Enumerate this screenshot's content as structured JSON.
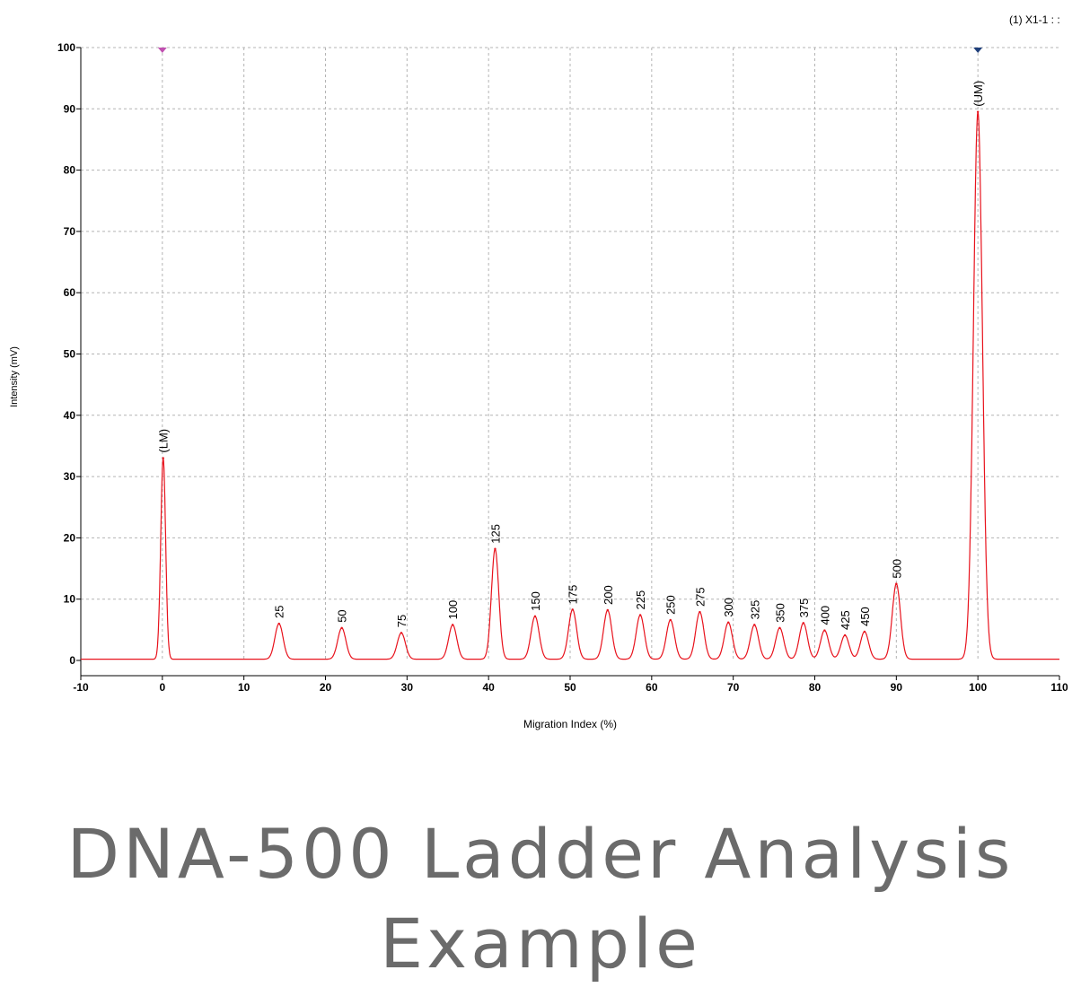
{
  "legend": "(1) X1-1 : :",
  "caption": {
    "line1": "DNA-500 Ladder Analysis",
    "line2": "Example"
  },
  "colors": {
    "trace": "#e8121c",
    "grid": "#b4b4b4",
    "lower_marker": "#c050b0",
    "upper_marker": "#1f3f7a",
    "caption": "#6b6b6b"
  },
  "chart_data": {
    "type": "line",
    "xlabel": "Migration Index (%)",
    "ylabel": "Intensity (mV)",
    "xlim": [
      -10,
      110
    ],
    "ylim": [
      0,
      100
    ],
    "xticks": [
      -10,
      0,
      10,
      20,
      30,
      40,
      50,
      60,
      70,
      80,
      90,
      100,
      110
    ],
    "yticks": [
      0,
      10,
      20,
      30,
      40,
      50,
      60,
      70,
      80,
      90,
      100
    ],
    "grid": true,
    "legend_position": "top-right",
    "markers": [
      {
        "x": 0,
        "color": "lower"
      },
      {
        "x": 100,
        "color": "upper"
      }
    ],
    "baseline": 0.2,
    "peaks": [
      {
        "label": "(LM)",
        "x": 0.1,
        "y": 33.0
      },
      {
        "label": "25",
        "x": 14.3,
        "y": 6.0
      },
      {
        "label": "50",
        "x": 22.0,
        "y": 5.3
      },
      {
        "label": "75",
        "x": 29.3,
        "y": 4.5
      },
      {
        "label": "100",
        "x": 35.6,
        "y": 5.8
      },
      {
        "label": "125",
        "x": 40.8,
        "y": 18.2
      },
      {
        "label": "150",
        "x": 45.7,
        "y": 7.2
      },
      {
        "label": "175",
        "x": 50.3,
        "y": 8.3
      },
      {
        "label": "200",
        "x": 54.6,
        "y": 8.2
      },
      {
        "label": "225",
        "x": 58.6,
        "y": 7.4
      },
      {
        "label": "250",
        "x": 62.3,
        "y": 6.6
      },
      {
        "label": "275",
        "x": 65.9,
        "y": 7.9
      },
      {
        "label": "300",
        "x": 69.4,
        "y": 6.2
      },
      {
        "label": "325",
        "x": 72.6,
        "y": 5.8
      },
      {
        "label": "350",
        "x": 75.7,
        "y": 5.3
      },
      {
        "label": "375",
        "x": 78.6,
        "y": 6.1
      },
      {
        "label": "400",
        "x": 81.2,
        "y": 4.9
      },
      {
        "label": "425",
        "x": 83.7,
        "y": 4.1
      },
      {
        "label": "450",
        "x": 86.1,
        "y": 4.7
      },
      {
        "label": "500",
        "x": 90.0,
        "y": 12.5
      },
      {
        "label": "(UM)",
        "x": 100.0,
        "y": 89.5
      }
    ]
  }
}
